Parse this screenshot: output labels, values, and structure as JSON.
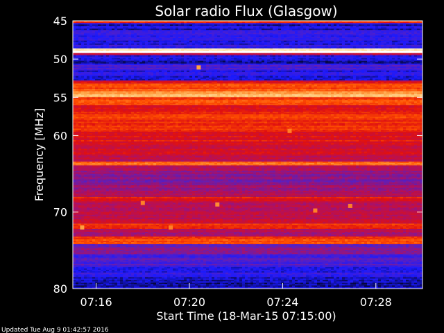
{
  "chart_data": {
    "type": "heatmap",
    "title": "Solar radio Flux (Glasgow)",
    "xlabel": "Start Time (18-Mar-15 07:15:00)",
    "ylabel": "Frequency [MHz]",
    "x_ticks": [
      "07:16",
      "07:20",
      "07:24",
      "07:28"
    ],
    "x_tick_minutes": [
      16,
      20,
      24,
      28
    ],
    "xlim_minutes": [
      15,
      30
    ],
    "y_ticks": [
      45,
      50,
      55,
      60,
      70,
      80
    ],
    "ylim": [
      45,
      80
    ],
    "colormap": [
      "#000000",
      "#1a1aff",
      "#5a20c0",
      "#b01060",
      "#e01010",
      "#ff5000",
      "#ffa040",
      "#ffe0a0",
      "#ffffff"
    ],
    "frequency_bands": [
      {
        "f1": 44.2,
        "f2": 45.0,
        "level": 0.05
      },
      {
        "f1": 45.0,
        "f2": 45.3,
        "level": 0.55
      },
      {
        "f1": 45.3,
        "f2": 46.2,
        "level": 0.12
      },
      {
        "f1": 46.2,
        "f2": 47.6,
        "level": 0.18
      },
      {
        "f1": 47.6,
        "f2": 48.6,
        "level": 0.15
      },
      {
        "f1": 48.6,
        "f2": 48.9,
        "level": 0.92
      },
      {
        "f1": 48.9,
        "f2": 49.2,
        "level": 1.0
      },
      {
        "f1": 49.2,
        "f2": 49.5,
        "level": 0.4
      },
      {
        "f1": 49.5,
        "f2": 50.6,
        "level": 0.12
      },
      {
        "f1": 50.6,
        "f2": 51.5,
        "level": 0.2
      },
      {
        "f1": 51.5,
        "f2": 52.8,
        "level": 0.14
      },
      {
        "f1": 52.8,
        "f2": 53.2,
        "level": 0.5
      },
      {
        "f1": 53.2,
        "f2": 54.2,
        "level": 0.62
      },
      {
        "f1": 54.2,
        "f2": 55.0,
        "level": 0.78
      },
      {
        "f1": 55.0,
        "f2": 56.0,
        "level": 0.6
      },
      {
        "f1": 56.0,
        "f2": 57.2,
        "level": 0.52
      },
      {
        "f1": 57.2,
        "f2": 58.0,
        "level": 0.58
      },
      {
        "f1": 58.0,
        "f2": 59.5,
        "level": 0.55
      },
      {
        "f1": 59.5,
        "f2": 61.0,
        "level": 0.5
      },
      {
        "f1": 61.0,
        "f2": 62.5,
        "level": 0.44
      },
      {
        "f1": 62.5,
        "f2": 63.4,
        "level": 0.4
      },
      {
        "f1": 63.4,
        "f2": 63.9,
        "level": 0.66
      },
      {
        "f1": 63.9,
        "f2": 65.0,
        "level": 0.36
      },
      {
        "f1": 65.0,
        "f2": 66.5,
        "level": 0.3
      },
      {
        "f1": 66.5,
        "f2": 68.0,
        "level": 0.35
      },
      {
        "f1": 68.0,
        "f2": 68.6,
        "level": 0.5
      },
      {
        "f1": 68.6,
        "f2": 70.0,
        "level": 0.38
      },
      {
        "f1": 70.0,
        "f2": 71.5,
        "level": 0.42
      },
      {
        "f1": 71.5,
        "f2": 72.2,
        "level": 0.55
      },
      {
        "f1": 72.2,
        "f2": 73.2,
        "level": 0.38
      },
      {
        "f1": 73.2,
        "f2": 74.2,
        "level": 0.6
      },
      {
        "f1": 74.2,
        "f2": 75.5,
        "level": 0.3
      },
      {
        "f1": 75.5,
        "f2": 77.0,
        "level": 0.22
      },
      {
        "f1": 77.0,
        "f2": 78.5,
        "level": 0.16
      },
      {
        "f1": 78.5,
        "f2": 80.0,
        "level": 0.1
      },
      {
        "f1": 80.0,
        "f2": 80.2,
        "level": 0.05
      }
    ],
    "bursts": [
      {
        "t": 24.3,
        "f": 59.4,
        "level": 0.7
      },
      {
        "t": 20.4,
        "f": 51.1,
        "level": 0.75
      },
      {
        "t": 18.0,
        "f": 68.8,
        "level": 0.7
      },
      {
        "t": 25.4,
        "f": 69.8,
        "level": 0.7
      },
      {
        "t": 15.4,
        "f": 72.0,
        "level": 0.75
      },
      {
        "t": 19.2,
        "f": 72.0,
        "level": 0.7
      },
      {
        "t": 21.2,
        "f": 69.0,
        "level": 0.72
      },
      {
        "t": 26.9,
        "f": 69.2,
        "level": 0.7
      }
    ]
  },
  "footer": {
    "updated": "Updated Tue Aug  9 01:42:57 2016"
  }
}
